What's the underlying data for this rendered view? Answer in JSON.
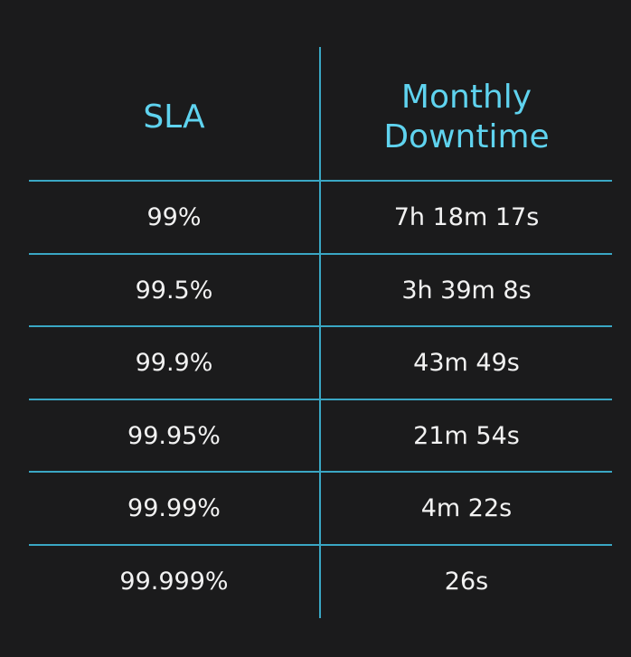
{
  "table": {
    "headers": {
      "sla": "SLA",
      "downtime_line1": "Monthly",
      "downtime_line2": "Downtime"
    },
    "rows": [
      {
        "sla": "99%",
        "downtime": "7h 18m 17s"
      },
      {
        "sla": "99.5%",
        "downtime": "3h 39m 8s"
      },
      {
        "sla": "99.9%",
        "downtime": "43m 49s"
      },
      {
        "sla": "99.95%",
        "downtime": "21m 54s"
      },
      {
        "sla": "99.99%",
        "downtime": "4m 22s"
      },
      {
        "sla": "99.999%",
        "downtime": "26s"
      }
    ]
  },
  "colors": {
    "background": "#1b1b1c",
    "header_text": "#5fd3ef",
    "grid_line": "#3aa7c4",
    "cell_text": "#f2f2f2"
  }
}
